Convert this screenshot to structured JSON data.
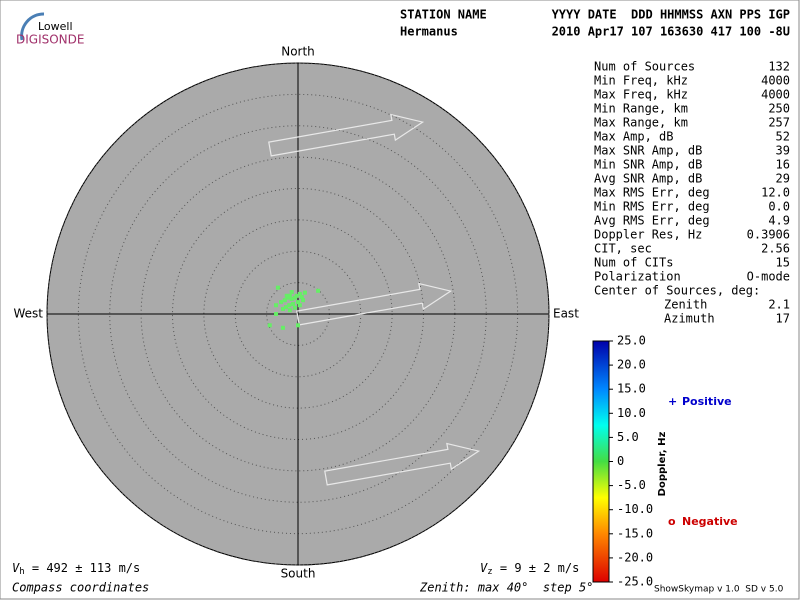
{
  "header": {
    "logo_top": "Lowell",
    "logo_bottom": "DIGISONDE",
    "row1_left": "STATION NAME",
    "row1_right": "YYYY DATE  DDD HHMMSS AXN PPS IGP",
    "row2_left": "Hermanus",
    "row2_right": "2010 Apr17 107 163630 417 100 -8U"
  },
  "stats": [
    [
      "Num of Sources",
      "132"
    ],
    [
      "Min Freq, kHz",
      "4000"
    ],
    [
      "Max Freq, kHz",
      "4000"
    ],
    [
      "Min Range, km",
      "250"
    ],
    [
      "Max Range, km",
      "257"
    ],
    [
      "Max Amp, dB",
      "52"
    ],
    [
      "Max SNR Amp, dB",
      "39"
    ],
    [
      "Min SNR Amp, dB",
      "16"
    ],
    [
      "Avg SNR Amp, dB",
      "29"
    ],
    [
      "Max RMS Err, deg",
      "12.0"
    ],
    [
      "Min RMS Err, deg",
      "0.0"
    ],
    [
      "Avg RMS Err, deg",
      "4.9"
    ],
    [
      "Doppler Res, Hz",
      "0.3906"
    ],
    [
      "CIT, sec",
      "2.56"
    ],
    [
      "Num of CITs",
      "15"
    ],
    [
      "Polarization",
      "O-mode"
    ]
  ],
  "center": {
    "title": "Center of Sources, deg:",
    "rows": [
      [
        "Zenith",
        "2.1"
      ],
      [
        "Azimuth",
        "17"
      ]
    ]
  },
  "footer": {
    "vh_symbol": "V",
    "vh_sub": "h",
    "vh_text": " = 492 ± 113 m/s",
    "vz_symbol": "V",
    "vz_sub": "z",
    "vz_text": " = 9 ± 2 m/s",
    "left": "Compass coordinates",
    "zenith": "Zenith: max 40°  step 5°",
    "version": "ShowSkymap v 1.0  SD v 5.0"
  },
  "chart_data": {
    "type": "scatter",
    "compass": {
      "north": "North",
      "south": "South",
      "east": "East",
      "west": "West"
    },
    "xlim": [
      -40,
      40
    ],
    "ylim": [
      -40,
      40
    ],
    "rings": [
      5,
      10,
      15,
      20,
      25,
      30,
      35,
      40
    ],
    "series": [
      {
        "color": "#66ee66",
        "x": [
          -3.2,
          -2.7,
          -3.5,
          -2.1,
          -1.6,
          -1.3,
          -1.0,
          -0.5,
          -0.2,
          0.3,
          0.6,
          0,
          -0.8,
          -1.4,
          -1.9,
          -2.4,
          -1.3,
          -0.5,
          0.3,
          0.8,
          1.1,
          3.2,
          -4.5,
          -2.4,
          0,
          -3.5,
          -1.8,
          -1.0
        ],
        "values": [
          4.2,
          1.9,
          1.4,
          2.2,
          2.6,
          2.9,
          2.4,
          2.6,
          2.9,
          3.2,
          2.7,
          1.9,
          1.6,
          1.4,
          1.1,
          0.8,
          0.6,
          1.0,
          1.4,
          2.2,
          3.4,
          3.7,
          -1.8,
          -2.2,
          -1.8,
          0,
          2.9,
          3.5
        ]
      }
    ],
    "colorbar": {
      "label": "Doppler, Hz",
      "lim": [
        -25,
        25
      ],
      "ticks": [
        {
          "value": 25,
          "label": "25.0"
        },
        {
          "value": 20,
          "label": "20.0"
        },
        {
          "value": 15,
          "label": "15.0"
        },
        {
          "value": 10,
          "label": "10.0"
        },
        {
          "value": 5,
          "label": "5.0"
        },
        0,
        {
          "value": -5,
          "label": "-5.0"
        },
        {
          "value": -10,
          "label": "-10.0"
        },
        {
          "value": -15,
          "label": "-15.0"
        },
        {
          "value": -20,
          "label": "-20.0"
        },
        {
          "value": -25,
          "label": "-25.0"
        }
      ]
    },
    "legend": {
      "positive_marker": "+",
      "positive": "Positive",
      "negative_marker": "o",
      "negative": "Negative"
    }
  }
}
